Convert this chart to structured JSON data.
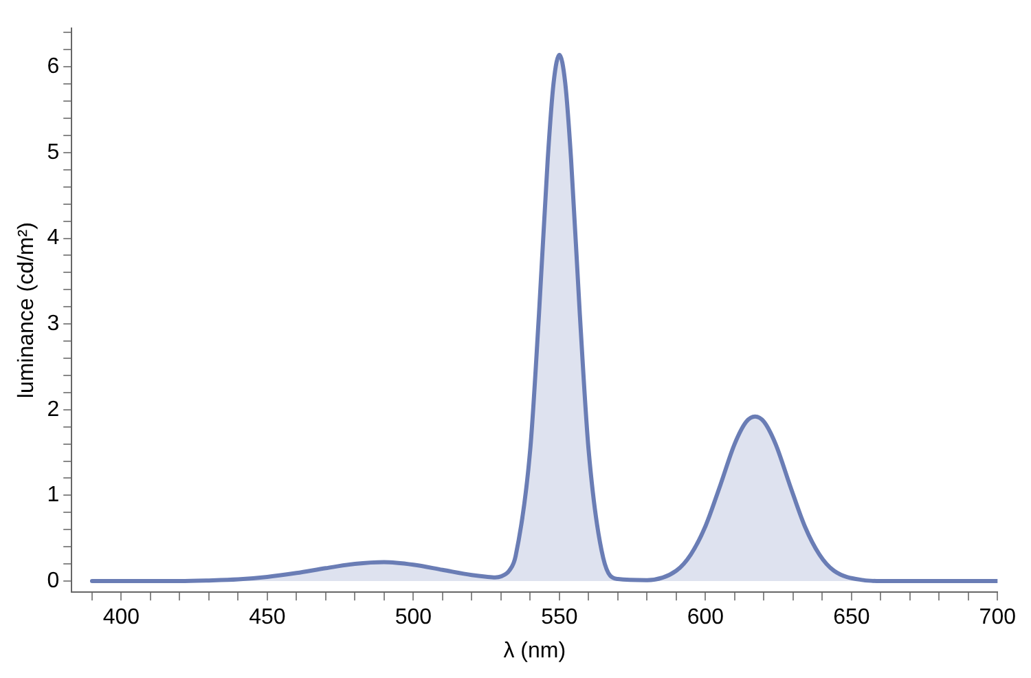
{
  "chart_data": {
    "type": "area",
    "xlabel": "λ (nm)",
    "ylabel": "luminance (cd/m²)",
    "x": [
      390,
      400,
      410,
      420,
      430,
      440,
      450,
      460,
      470,
      480,
      490,
      500,
      510,
      520,
      525,
      528,
      530,
      533,
      535,
      540,
      543,
      546,
      548,
      550,
      552,
      554,
      557,
      560,
      565,
      570,
      580,
      590,
      595,
      600,
      605,
      610,
      614,
      617,
      620,
      624,
      629,
      634,
      639,
      644,
      654,
      660,
      670,
      680,
      690,
      700
    ],
    "series": [
      {
        "color": "#6a7db5",
        "values": [
          0,
          0,
          0,
          0,
          0.007,
          0.02,
          0.049,
          0.094,
          0.15,
          0.2,
          0.22,
          0.19,
          0.13,
          0.07,
          0.05,
          0.043,
          0.054,
          0.13,
          0.29,
          1.53,
          3.11,
          4.92,
          5.81,
          6.14,
          5.81,
          4.92,
          3.11,
          1.53,
          0.27,
          0.024,
          0.011,
          0.12,
          0.31,
          0.64,
          1.11,
          1.6,
          1.86,
          1.92,
          1.86,
          1.6,
          1.11,
          0.64,
          0.31,
          0.12,
          0.011,
          0,
          0,
          0,
          0,
          0
        ]
      }
    ],
    "xlim": [
      383,
      700
    ],
    "ylim": [
      -0.13,
      6.45
    ],
    "xticks": [
      {
        "value": 390,
        "label": null
      },
      400,
      {
        "value": 410,
        "label": null
      },
      {
        "value": 420,
        "label": null
      },
      {
        "value": 430,
        "label": null
      },
      {
        "value": 440,
        "label": null
      },
      450,
      {
        "value": 460,
        "label": null
      },
      {
        "value": 470,
        "label": null
      },
      {
        "value": 480,
        "label": null
      },
      {
        "value": 490,
        "label": null
      },
      500,
      {
        "value": 510,
        "label": null
      },
      {
        "value": 520,
        "label": null
      },
      {
        "value": 530,
        "label": null
      },
      {
        "value": 540,
        "label": null
      },
      550,
      {
        "value": 560,
        "label": null
      },
      {
        "value": 570,
        "label": null
      },
      {
        "value": 580,
        "label": null
      },
      {
        "value": 590,
        "label": null
      },
      600,
      {
        "value": 610,
        "label": null
      },
      {
        "value": 620,
        "label": null
      },
      {
        "value": 630,
        "label": null
      },
      {
        "value": 640,
        "label": null
      },
      650,
      {
        "value": 660,
        "label": null
      },
      {
        "value": 670,
        "label": null
      },
      {
        "value": 680,
        "label": null
      },
      {
        "value": 690,
        "label": null
      },
      700
    ],
    "yticks": [
      0,
      {
        "value": 0.2,
        "label": null
      },
      {
        "value": 0.4,
        "label": null
      },
      {
        "value": 0.6,
        "label": null
      },
      {
        "value": 0.8,
        "label": null
      },
      1,
      {
        "value": 1.2,
        "label": null
      },
      {
        "value": 1.4,
        "label": null
      },
      {
        "value": 1.6,
        "label": null
      },
      {
        "value": 1.8,
        "label": null
      },
      2,
      {
        "value": 2.2,
        "label": null
      },
      {
        "value": 2.4,
        "label": null
      },
      {
        "value": 2.6,
        "label": null
      },
      {
        "value": 2.8,
        "label": null
      },
      3,
      {
        "value": 3.2,
        "label": null
      },
      {
        "value": 3.4,
        "label": null
      },
      {
        "value": 3.6,
        "label": null
      },
      {
        "value": 3.8,
        "label": null
      },
      4,
      {
        "value": 4.2,
        "label": null
      },
      {
        "value": 4.4,
        "label": null
      },
      {
        "value": 4.6,
        "label": null
      },
      {
        "value": 4.8,
        "label": null
      },
      5,
      {
        "value": 5.2,
        "label": null
      },
      {
        "value": 5.4,
        "label": null
      },
      {
        "value": 5.6,
        "label": null
      },
      {
        "value": 5.8,
        "label": null
      },
      6,
      {
        "value": 6.2,
        "label": null
      },
      {
        "value": 6.4,
        "label": null
      }
    ],
    "grid": false,
    "legend": false,
    "marker": "none",
    "line_style": "solid"
  }
}
